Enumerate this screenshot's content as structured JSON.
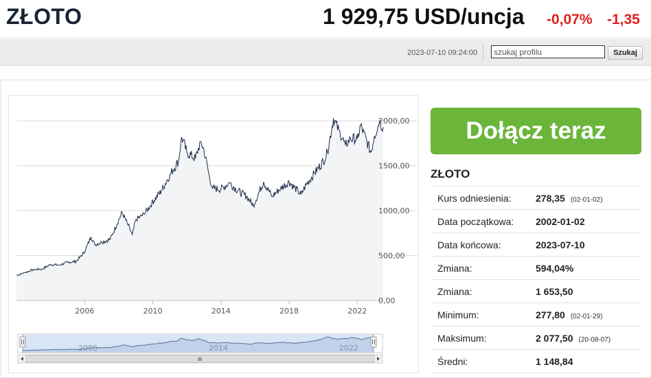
{
  "header": {
    "title": "ZŁOTO",
    "price": "1 929,75 USD/uncja",
    "change_pct": "-0,07%",
    "change_abs": "-1,35",
    "timestamp": "2023-07-10 09:24:00"
  },
  "search": {
    "placeholder": "szukaj profilu",
    "value": "",
    "button_label": "Szukaj"
  },
  "cta": {
    "label": "Dołącz teraz"
  },
  "stats": {
    "title": "ZŁOTO",
    "rows": [
      {
        "label": "Kurs odniesienia:",
        "value": "278,35",
        "note": "(02-01-02)"
      },
      {
        "label": "Data początkowa:",
        "value": "2002-01-02",
        "note": ""
      },
      {
        "label": "Data końcowa:",
        "value": "2023-07-10",
        "note": ""
      },
      {
        "label": "Zmiana:",
        "value": "594,04%",
        "note": ""
      },
      {
        "label": "Zmiana:",
        "value": "1 653,50",
        "note": ""
      },
      {
        "label": "Minimum:",
        "value": "277,80",
        "note": "(02-01-29)"
      },
      {
        "label": "Maksimum:",
        "value": "2 077,50",
        "note": "(20-08-07)"
      },
      {
        "label": "Średni:",
        "value": "1 148,84",
        "note": ""
      }
    ]
  },
  "colors": {
    "line": "#1c2a4a",
    "area": "#f3f4f6",
    "cta": "#6bb53b",
    "negative": "#e02020",
    "navigator_mask": "#c9dcf2"
  },
  "chart_data": {
    "type": "line",
    "title": "",
    "xlabel": "",
    "ylabel": "",
    "x_ticks": [
      "2006",
      "2010",
      "2014",
      "2018",
      "2022"
    ],
    "y_ticks": [
      "2000,00",
      "1500,00",
      "1000,00",
      "500,00",
      "0,00"
    ],
    "ylim": [
      0,
      2200
    ],
    "xlim": [
      2002.0,
      2023.52
    ],
    "grid": true,
    "legend": "none",
    "series": [
      {
        "x": [
          2002.0,
          2002.5,
          2003.0,
          2003.5,
          2004.0,
          2004.5,
          2005.0,
          2005.5,
          2006.0,
          2006.37,
          2006.6,
          2007.0,
          2007.5,
          2008.0,
          2008.2,
          2008.5,
          2008.8,
          2009.0,
          2009.5,
          2010.0,
          2010.5,
          2011.0,
          2011.5,
          2011.7,
          2012.0,
          2012.5,
          2012.8,
          2013.0,
          2013.3,
          2013.5,
          2014.0,
          2014.5,
          2015.0,
          2015.5,
          2015.9,
          2016.5,
          2017.0,
          2017.5,
          2018.0,
          2018.7,
          2019.0,
          2019.5,
          2020.0,
          2020.25,
          2020.6,
          2021.0,
          2021.3,
          2021.6,
          2022.0,
          2022.2,
          2022.8,
          2023.0,
          2023.3,
          2023.52
        ],
        "y": [
          280,
          310,
          345,
          350,
          400,
          395,
          425,
          435,
          540,
          710,
          620,
          650,
          680,
          900,
          980,
          860,
          730,
          900,
          960,
          1100,
          1220,
          1400,
          1550,
          1820,
          1650,
          1580,
          1770,
          1680,
          1400,
          1250,
          1240,
          1310,
          1220,
          1160,
          1060,
          1320,
          1160,
          1250,
          1320,
          1180,
          1290,
          1420,
          1550,
          1650,
          2030,
          1850,
          1730,
          1800,
          1800,
          1950,
          1650,
          1830,
          1990,
          1930
        ]
      }
    ]
  }
}
